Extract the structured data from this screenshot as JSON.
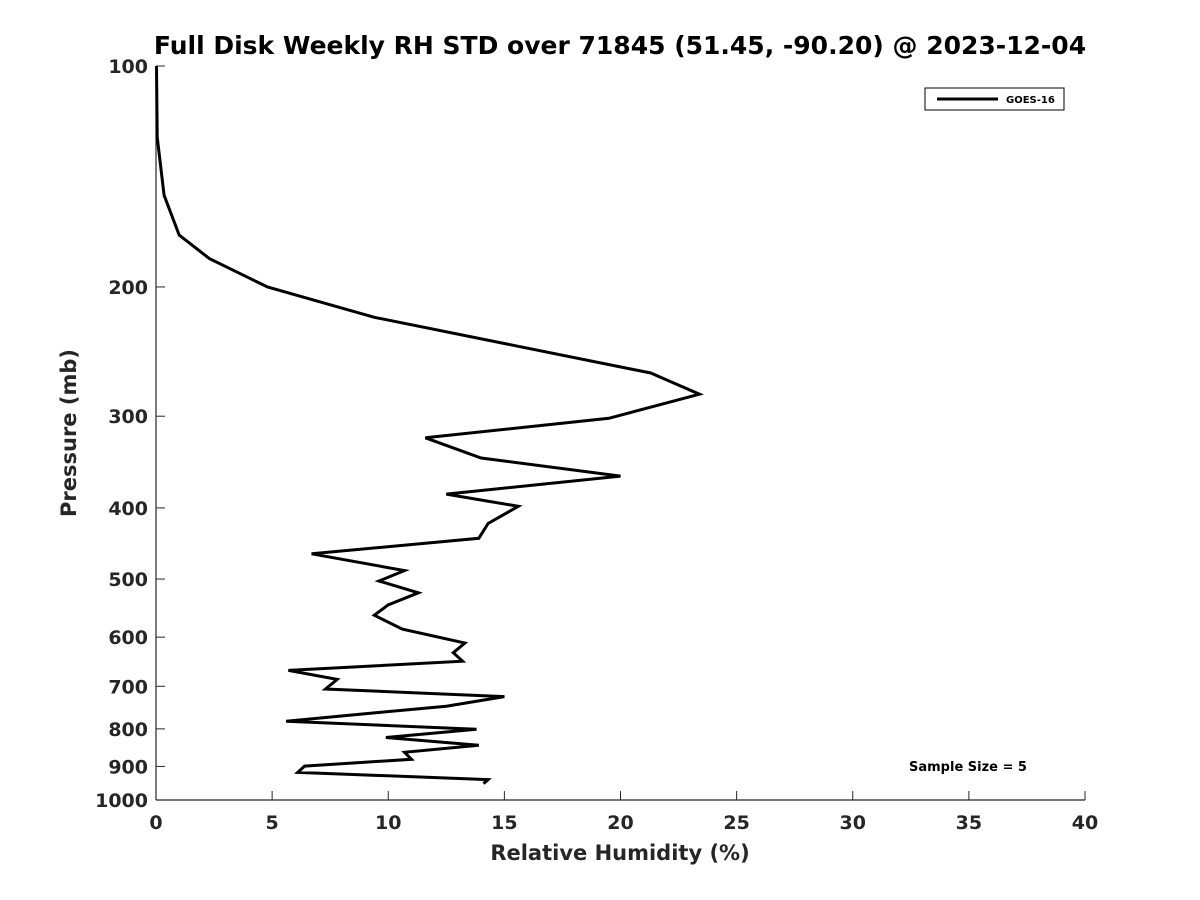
{
  "chart_data": {
    "type": "line",
    "title": "Full Disk Weekly RH STD over 71845 (51.45, -90.20) @ 2023-12-04",
    "xlabel": "Relative Humidity (%)",
    "ylabel": "Pressure (mb)",
    "xlim": [
      0,
      40
    ],
    "ylim": [
      100,
      1000
    ],
    "y_scale": "log",
    "y_reversed": true,
    "grid": false,
    "x_ticks": [
      0,
      5,
      10,
      15,
      20,
      25,
      30,
      35,
      40
    ],
    "y_ticks": [
      100,
      200,
      300,
      400,
      500,
      600,
      700,
      800,
      900,
      1000
    ],
    "legend_position": "top-right",
    "series": [
      {
        "name": "GOES-16",
        "color": "#000000",
        "points": [
          [
            0.02,
            100
          ],
          [
            0.05,
            125
          ],
          [
            0.35,
            150
          ],
          [
            1.0,
            170
          ],
          [
            2.3,
            183
          ],
          [
            4.8,
            200
          ],
          [
            9.4,
            220
          ],
          [
            21.3,
            262
          ],
          [
            23.4,
            280
          ],
          [
            19.5,
            302
          ],
          [
            11.6,
            321
          ],
          [
            14.0,
            342
          ],
          [
            20.0,
            362
          ],
          [
            12.5,
            383
          ],
          [
            15.6,
            398
          ],
          [
            14.3,
            420
          ],
          [
            13.9,
            440
          ],
          [
            6.7,
            462
          ],
          [
            10.7,
            487
          ],
          [
            9.6,
            503
          ],
          [
            11.3,
            522
          ],
          [
            10.0,
            542
          ],
          [
            9.4,
            560
          ],
          [
            10.6,
            585
          ],
          [
            13.3,
            611
          ],
          [
            12.8,
            630
          ],
          [
            13.2,
            647
          ],
          [
            5.7,
            666
          ],
          [
            7.8,
            685
          ],
          [
            7.3,
            706
          ],
          [
            15.0,
            723
          ],
          [
            12.5,
            745
          ],
          [
            9.4,
            761
          ],
          [
            5.6,
            781
          ],
          [
            13.8,
            801
          ],
          [
            9.9,
            822
          ],
          [
            13.9,
            842
          ],
          [
            10.7,
            861
          ],
          [
            11.0,
            880
          ],
          [
            6.4,
            899
          ],
          [
            6.1,
            917
          ],
          [
            14.3,
            938
          ],
          [
            14.1,
            950
          ]
        ]
      }
    ],
    "annotations": [
      "Sample Size = 5"
    ]
  }
}
